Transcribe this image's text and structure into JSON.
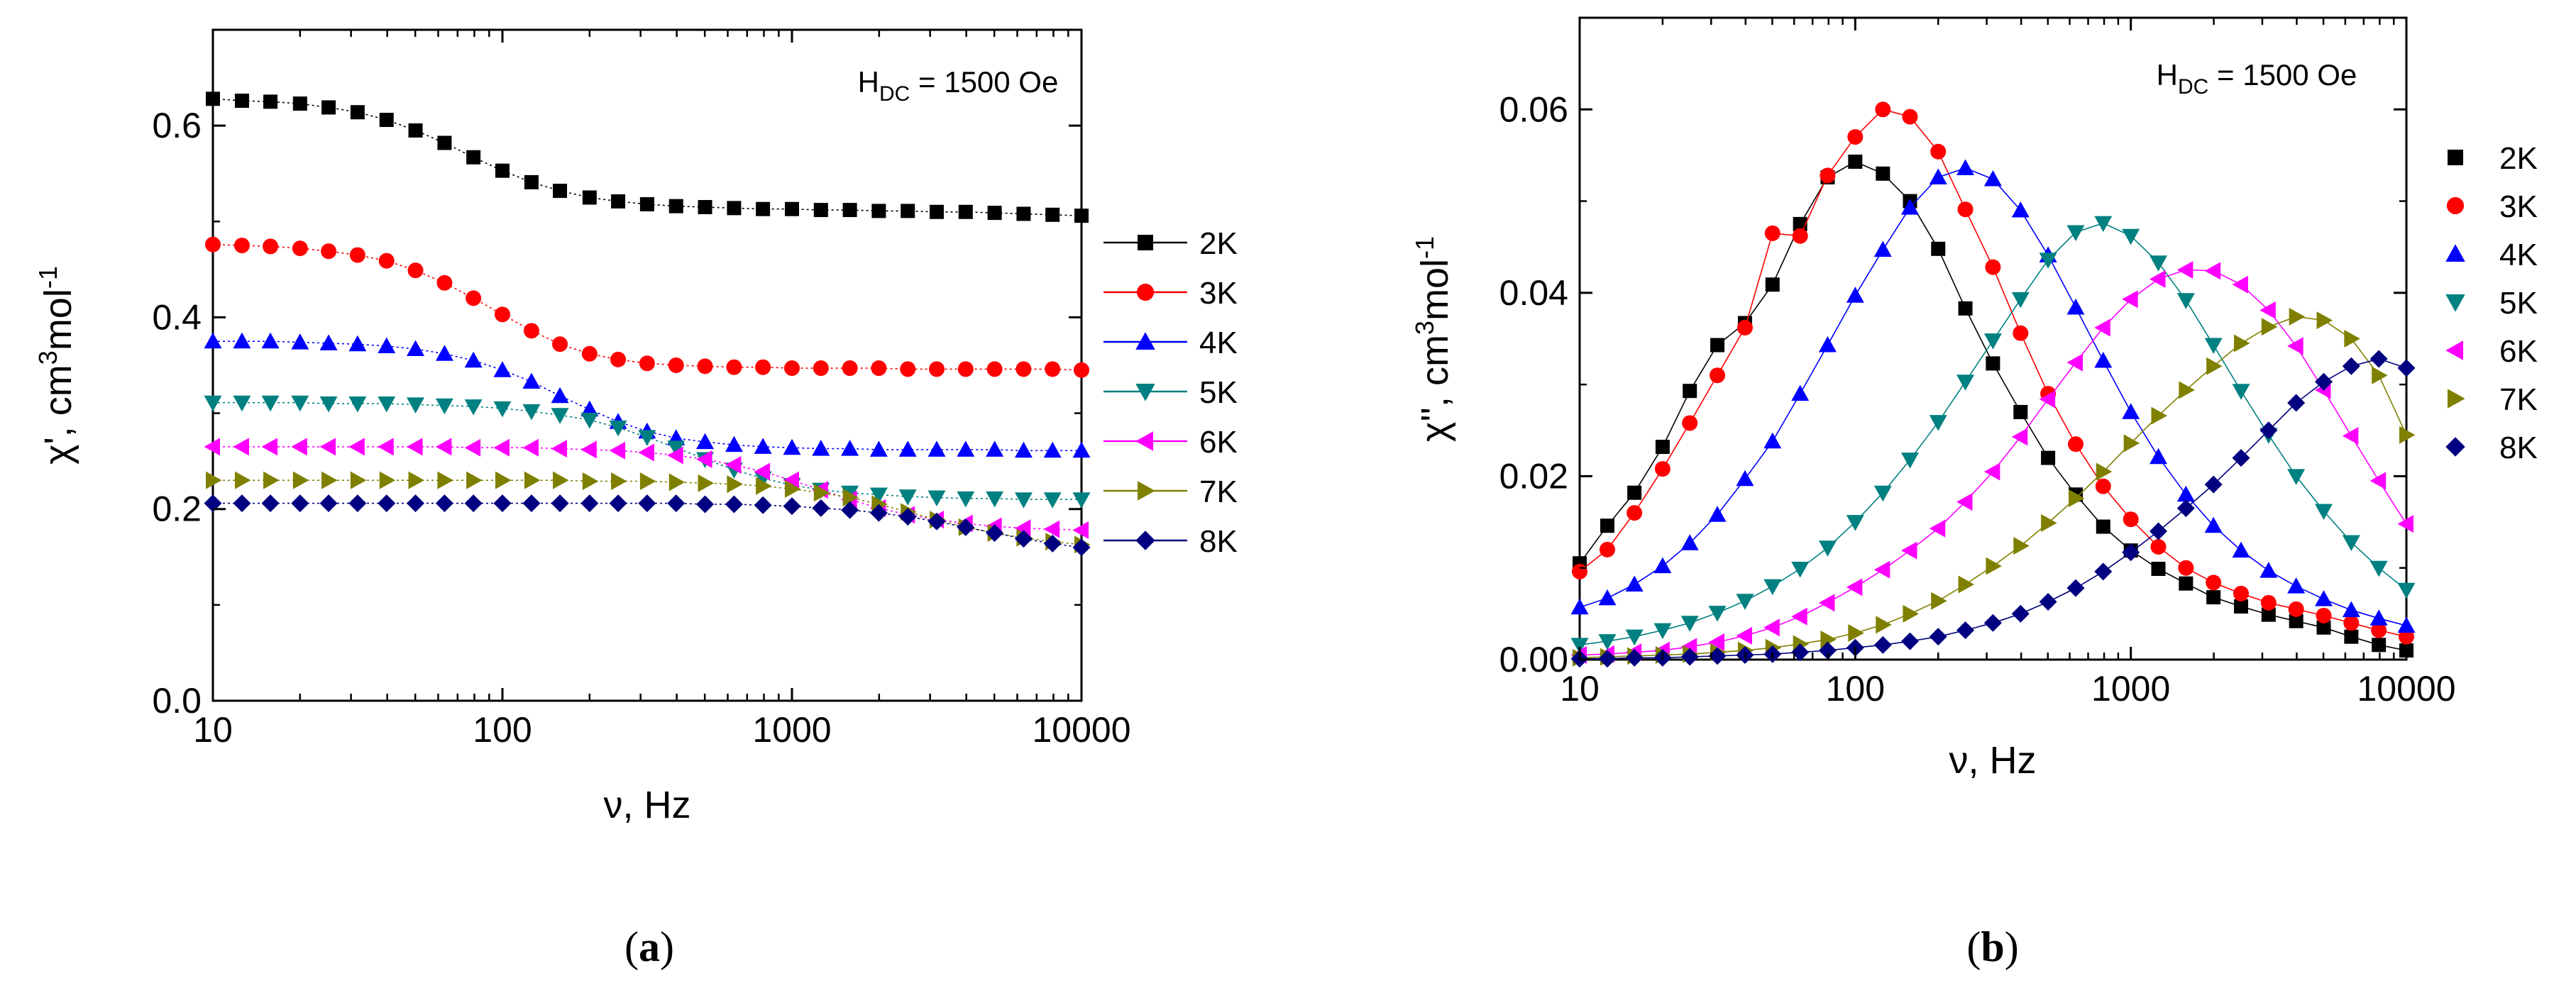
{
  "chart_data": [
    {
      "type": "line",
      "panel": "a",
      "caption": "(a)",
      "caption_letter": "a",
      "xlabel": "ν, Hz",
      "ylabel": "χ', cm³mol⁻¹",
      "ylabel_parts": {
        "base": "χ', cm",
        "sup1": "3",
        "mid": "mol",
        "sup2": "-1"
      },
      "annotation": {
        "h": "H",
        "sub": "DC",
        "rest": " = 1500 Oe"
      },
      "xscale": "log",
      "xlim": [
        10,
        10000
      ],
      "ylim": [
        0,
        0.7
      ],
      "xticks": [
        10,
        100,
        1000,
        10000
      ],
      "xtick_labels": [
        "10",
        "100",
        "1000",
        "10000"
      ],
      "yticks": [
        0,
        0.2,
        0.4,
        0.6
      ],
      "ytick_labels": [
        "0.0",
        "0.2",
        "0.4",
        "0.6"
      ],
      "legend": "outside-right",
      "legend_style": "line",
      "x": [
        10,
        12.6,
        15.8,
        20,
        25.1,
        31.6,
        39.8,
        50.1,
        63.1,
        79.4,
        100,
        126,
        158,
        200,
        251,
        316,
        398,
        501,
        631,
        794,
        1000,
        1259,
        1585,
        1995,
        2512,
        3162,
        3981,
        5012,
        6310,
        7943,
        10000
      ],
      "series": [
        {
          "name": "2K",
          "color": "#000000",
          "marker": "square",
          "values": [
            0.628,
            0.626,
            0.625,
            0.623,
            0.619,
            0.614,
            0.606,
            0.595,
            0.582,
            0.567,
            0.553,
            0.541,
            0.532,
            0.525,
            0.521,
            0.518,
            0.516,
            0.515,
            0.514,
            0.513,
            0.513,
            0.512,
            0.512,
            0.511,
            0.511,
            0.51,
            0.51,
            0.509,
            0.508,
            0.507,
            0.506
          ]
        },
        {
          "name": "3K",
          "color": "#ff0000",
          "marker": "circle",
          "values": [
            0.476,
            0.475,
            0.474,
            0.472,
            0.469,
            0.465,
            0.459,
            0.449,
            0.436,
            0.42,
            0.403,
            0.386,
            0.372,
            0.362,
            0.356,
            0.352,
            0.35,
            0.349,
            0.348,
            0.348,
            0.347,
            0.347,
            0.347,
            0.347,
            0.346,
            0.346,
            0.346,
            0.346,
            0.346,
            0.346,
            0.345
          ]
        },
        {
          "name": "4K",
          "color": "#0000ff",
          "marker": "triangle-up",
          "values": [
            0.375,
            0.375,
            0.375,
            0.374,
            0.373,
            0.372,
            0.37,
            0.367,
            0.362,
            0.355,
            0.345,
            0.333,
            0.318,
            0.304,
            0.291,
            0.281,
            0.274,
            0.27,
            0.267,
            0.265,
            0.264,
            0.263,
            0.263,
            0.262,
            0.262,
            0.262,
            0.262,
            0.262,
            0.261,
            0.261,
            0.261
          ]
        },
        {
          "name": "5K",
          "color": "#008080",
          "marker": "triangle-down",
          "values": [
            0.311,
            0.311,
            0.311,
            0.311,
            0.31,
            0.31,
            0.31,
            0.309,
            0.308,
            0.307,
            0.305,
            0.302,
            0.298,
            0.293,
            0.285,
            0.275,
            0.264,
            0.252,
            0.241,
            0.232,
            0.225,
            0.22,
            0.217,
            0.215,
            0.213,
            0.212,
            0.211,
            0.211,
            0.21,
            0.21,
            0.21
          ]
        },
        {
          "name": "6K",
          "color": "#ff00ff",
          "marker": "triangle-left",
          "values": [
            0.265,
            0.265,
            0.265,
            0.265,
            0.265,
            0.265,
            0.265,
            0.265,
            0.265,
            0.264,
            0.264,
            0.264,
            0.263,
            0.262,
            0.261,
            0.259,
            0.256,
            0.252,
            0.246,
            0.239,
            0.23,
            0.22,
            0.21,
            0.201,
            0.194,
            0.189,
            0.185,
            0.182,
            0.18,
            0.179,
            0.178
          ]
        },
        {
          "name": "7K",
          "color": "#808000",
          "marker": "triangle-right",
          "values": [
            0.23,
            0.23,
            0.23,
            0.23,
            0.23,
            0.23,
            0.23,
            0.23,
            0.23,
            0.23,
            0.23,
            0.23,
            0.23,
            0.229,
            0.229,
            0.229,
            0.228,
            0.227,
            0.226,
            0.224,
            0.221,
            0.217,
            0.212,
            0.205,
            0.197,
            0.189,
            0.181,
            0.175,
            0.17,
            0.166,
            0.163
          ]
        },
        {
          "name": "8K",
          "color": "#000080",
          "marker": "diamond",
          "values": [
            0.206,
            0.206,
            0.206,
            0.206,
            0.206,
            0.206,
            0.206,
            0.206,
            0.206,
            0.206,
            0.206,
            0.206,
            0.206,
            0.206,
            0.206,
            0.206,
            0.206,
            0.205,
            0.205,
            0.204,
            0.203,
            0.201,
            0.199,
            0.196,
            0.192,
            0.187,
            0.181,
            0.175,
            0.169,
            0.164,
            0.16
          ]
        }
      ]
    },
    {
      "type": "line",
      "panel": "b",
      "caption": "(b)",
      "caption_letter": "b",
      "xlabel": "ν, Hz",
      "ylabel": "χ'', cm³mol⁻¹",
      "ylabel_parts": {
        "base": "χ'', cm",
        "sup1": "3",
        "mid": "mol",
        "sup2": "-1"
      },
      "annotation": {
        "h": "H",
        "sub": "DC",
        "rest": " = 1500 Oe"
      },
      "xscale": "log",
      "xlim": [
        10,
        10000
      ],
      "ylim": [
        0,
        0.07
      ],
      "xticks": [
        10,
        100,
        1000,
        10000
      ],
      "xtick_labels": [
        "10",
        "100",
        "1000",
        "10000"
      ],
      "yticks": [
        0,
        0.02,
        0.04,
        0.06
      ],
      "ytick_labels": [
        "0.00",
        "0.02",
        "0.04",
        "0.06"
      ],
      "legend": "outside-right",
      "legend_style": "marker",
      "x": [
        10,
        12.6,
        15.8,
        20,
        25.1,
        31.6,
        39.8,
        50.1,
        63.1,
        79.4,
        100,
        126,
        158,
        200,
        251,
        316,
        398,
        501,
        631,
        794,
        1000,
        1259,
        1585,
        1995,
        2512,
        3162,
        3981,
        5012,
        6310,
        7943,
        10000
      ],
      "series": [
        {
          "name": "2K",
          "color": "#000000",
          "marker": "square",
          "values": [
            0.0105,
            0.0146,
            0.0182,
            0.0232,
            0.0293,
            0.0343,
            0.0367,
            0.0409,
            0.0475,
            0.0526,
            0.0543,
            0.053,
            0.05,
            0.0448,
            0.0383,
            0.0323,
            0.027,
            0.022,
            0.018,
            0.0145,
            0.0119,
            0.0099,
            0.0083,
            0.0068,
            0.0058,
            0.0049,
            0.0042,
            0.0035,
            0.0025,
            0.0016,
            0.001
          ]
        },
        {
          "name": "3K",
          "color": "#ff0000",
          "marker": "circle",
          "values": [
            0.0096,
            0.012,
            0.016,
            0.0208,
            0.0258,
            0.031,
            0.0362,
            0.0465,
            0.0462,
            0.0528,
            0.057,
            0.06,
            0.0592,
            0.0554,
            0.0491,
            0.0428,
            0.0356,
            0.029,
            0.0235,
            0.0189,
            0.0153,
            0.0123,
            0.01,
            0.0084,
            0.0072,
            0.0062,
            0.0055,
            0.0048,
            0.004,
            0.0032,
            0.0025
          ]
        },
        {
          "name": "4K",
          "color": "#0000ff",
          "marker": "triangle-up",
          "values": [
            0.0057,
            0.0067,
            0.0082,
            0.0102,
            0.0127,
            0.0158,
            0.0197,
            0.0238,
            0.029,
            0.0343,
            0.0397,
            0.0447,
            0.0493,
            0.0526,
            0.0536,
            0.0524,
            0.049,
            0.0441,
            0.0384,
            0.0326,
            0.027,
            0.0221,
            0.018,
            0.0146,
            0.0119,
            0.0097,
            0.008,
            0.0066,
            0.0054,
            0.0045,
            0.0037
          ]
        },
        {
          "name": "5K",
          "color": "#008080",
          "marker": "triangle-down",
          "values": [
            0.0016,
            0.002,
            0.0025,
            0.0032,
            0.004,
            0.0051,
            0.0064,
            0.008,
            0.0099,
            0.0122,
            0.015,
            0.0182,
            0.0218,
            0.0259,
            0.0303,
            0.0348,
            0.0393,
            0.0436,
            0.0466,
            0.0476,
            0.0462,
            0.0433,
            0.0392,
            0.0343,
            0.0293,
            0.0245,
            0.02,
            0.0162,
            0.0128,
            0.01,
            0.0076
          ]
        },
        {
          "name": "6K",
          "color": "#ff00ff",
          "marker": "triangle-left",
          "values": [
            0.0005,
            0.0006,
            0.0008,
            0.001,
            0.0014,
            0.0019,
            0.0026,
            0.0035,
            0.0047,
            0.0062,
            0.0079,
            0.0098,
            0.0119,
            0.0143,
            0.0172,
            0.0205,
            0.0243,
            0.0284,
            0.0324,
            0.0362,
            0.0393,
            0.0415,
            0.0425,
            0.0424,
            0.0409,
            0.0381,
            0.0342,
            0.0294,
            0.0244,
            0.0195,
            0.0148
          ]
        },
        {
          "name": "7K",
          "color": "#808000",
          "marker": "triangle-right",
          "values": [
            0.0002,
            0.0003,
            0.0004,
            0.0005,
            0.0006,
            0.0008,
            0.001,
            0.0013,
            0.0017,
            0.0022,
            0.0029,
            0.0038,
            0.005,
            0.0064,
            0.0082,
            0.0102,
            0.0124,
            0.0149,
            0.0176,
            0.0205,
            0.0236,
            0.0266,
            0.0294,
            0.032,
            0.0345,
            0.0363,
            0.0374,
            0.037,
            0.035,
            0.031,
            0.0245
          ]
        },
        {
          "name": "8K",
          "color": "#000080",
          "marker": "diamond",
          "values": [
            0.0001,
            0.0001,
            0.0002,
            0.0002,
            0.0003,
            0.0004,
            0.0005,
            0.0006,
            0.0008,
            0.001,
            0.0013,
            0.0016,
            0.002,
            0.0025,
            0.0032,
            0.004,
            0.005,
            0.0063,
            0.0078,
            0.0096,
            0.0117,
            0.014,
            0.0165,
            0.0191,
            0.022,
            0.025,
            0.028,
            0.0303,
            0.032,
            0.0328,
            0.0318
          ]
        }
      ]
    }
  ]
}
